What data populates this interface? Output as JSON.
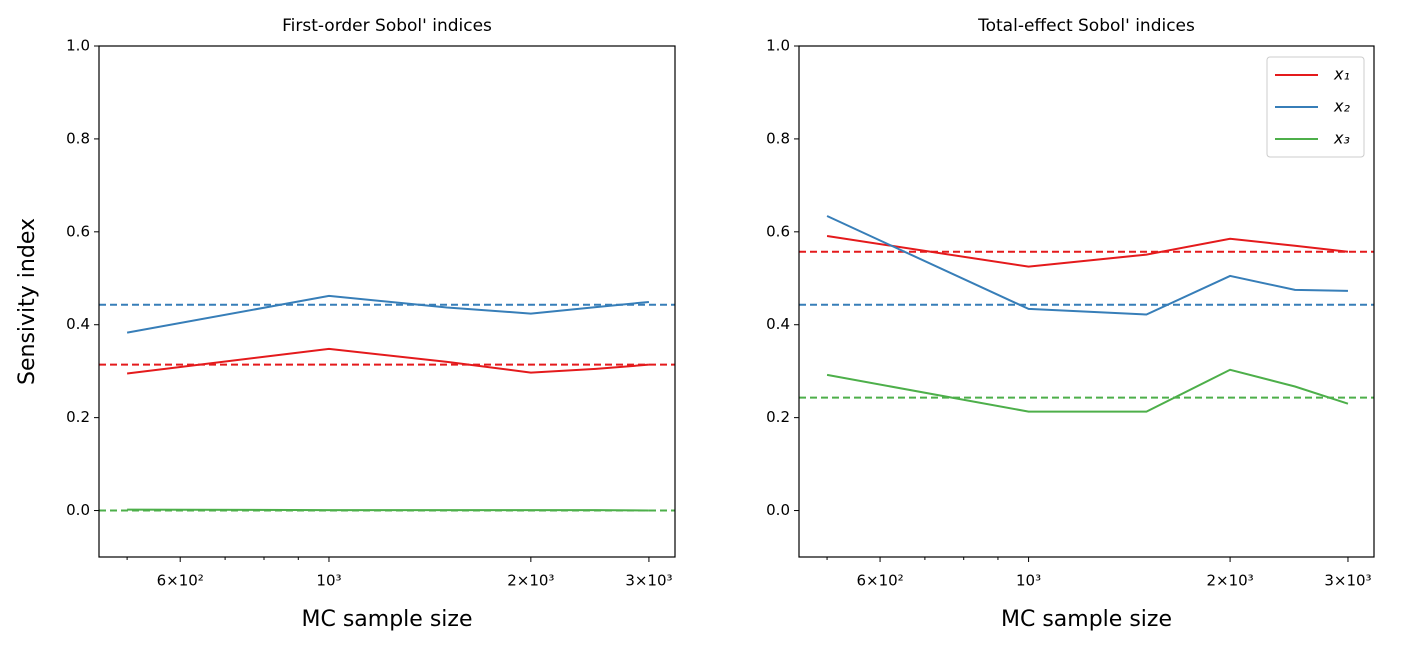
{
  "chart_data": [
    {
      "type": "line",
      "title": "First-order Sobol' indices",
      "xlabel": "MC sample size",
      "ylabel": "Sensivity index",
      "log_x": true,
      "xlim": [
        454,
        3281
      ],
      "ylim": [
        -0.1,
        1.0
      ],
      "xticks": [
        {
          "value": 600,
          "label": "6×10²"
        },
        {
          "value": 1000,
          "label": "10³"
        },
        {
          "value": 2000,
          "label": "2×10³"
        },
        {
          "value": 3000,
          "label": "3×10³"
        }
      ],
      "xminor_ticks": [
        500,
        700,
        800,
        900
      ],
      "yticks": [
        {
          "value": 0,
          "label": "0.0"
        },
        0.2,
        0.4,
        0.6,
        0.8,
        {
          "value": 1,
          "label": "1.0"
        }
      ],
      "x": [
        500,
        1000,
        1500,
        2000,
        2500,
        3000
      ],
      "series": [
        {
          "color": "#e41a1c",
          "values": [
            0.295,
            0.348,
            0.32,
            0.297,
            0.305,
            0.314
          ],
          "reference": 0.314
        },
        {
          "color": "#377eb8",
          "values": [
            0.383,
            0.462,
            0.437,
            0.424,
            0.438,
            0.449
          ],
          "reference": 0.443
        },
        {
          "color": "#4daf4a",
          "values": [
            0.002,
            0.001,
            0.001,
            0.001,
            0.001,
            0.0
          ],
          "reference": 0.0
        }
      ]
    },
    {
      "type": "line",
      "title": "Total-effect Sobol' indices",
      "xlabel": "MC sample size",
      "log_x": true,
      "xlim": [
        454,
        3281
      ],
      "ylim": [
        -0.1,
        1.0
      ],
      "legend": "upper right",
      "xticks": [
        {
          "value": 600,
          "label": "6×10²"
        },
        {
          "value": 1000,
          "label": "10³"
        },
        {
          "value": 2000,
          "label": "2×10³"
        },
        {
          "value": 3000,
          "label": "3×10³"
        }
      ],
      "xminor_ticks": [
        500,
        700,
        800,
        900
      ],
      "yticks": [
        {
          "value": 0,
          "label": "0.0"
        },
        0.2,
        0.4,
        0.6,
        0.8,
        {
          "value": 1,
          "label": "1.0"
        }
      ],
      "x": [
        500,
        1000,
        1500,
        2000,
        2500,
        3000
      ],
      "series": [
        {
          "name": "x₁",
          "color": "#e41a1c",
          "values": [
            0.591,
            0.525,
            0.551,
            0.585,
            0.57,
            0.557
          ],
          "reference": 0.557
        },
        {
          "name": "x₂",
          "color": "#377eb8",
          "values": [
            0.634,
            0.434,
            0.422,
            0.505,
            0.475,
            0.473
          ],
          "reference": 0.443
        },
        {
          "name": "x₃",
          "color": "#4daf4a",
          "values": [
            0.292,
            0.213,
            0.213,
            0.303,
            0.267,
            0.23
          ],
          "reference": 0.243
        }
      ]
    }
  ]
}
